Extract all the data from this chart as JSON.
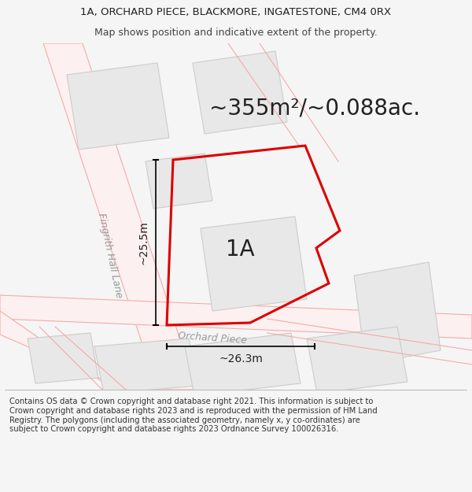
{
  "title_line1": "1A, ORCHARD PIECE, BLACKMORE, INGATESTONE, CM4 0RX",
  "title_line2": "Map shows position and indicative extent of the property.",
  "area_text": "~355m²/~0.088ac.",
  "label_1A": "1A",
  "dim_vertical": "~25.5m",
  "dim_horizontal": "~26.3m",
  "road_label1": "Fingrith Hall Lane",
  "road_label2": "Orchard Piece",
  "footer_text": "Contains OS data © Crown copyright and database right 2021. This information is subject to Crown copyright and database rights 2023 and is reproduced with the permission of HM Land Registry. The polygons (including the associated geometry, namely x, y co-ordinates) are subject to Crown copyright and database rights 2023 Ordnance Survey 100026316.",
  "bg_color": "#f5f5f5",
  "map_bg": "#ffffff",
  "road_line_color": "#f5aaaa",
  "building_color": "#e8e8e8",
  "building_edge": "#cccccc",
  "plot_color": "#dd0000",
  "title_fontsize": 9.5,
  "area_fontsize": 20,
  "label_fontsize": 20,
  "road_label_fontsize": 9,
  "dim_fontsize": 10,
  "footer_fontsize": 7.2
}
